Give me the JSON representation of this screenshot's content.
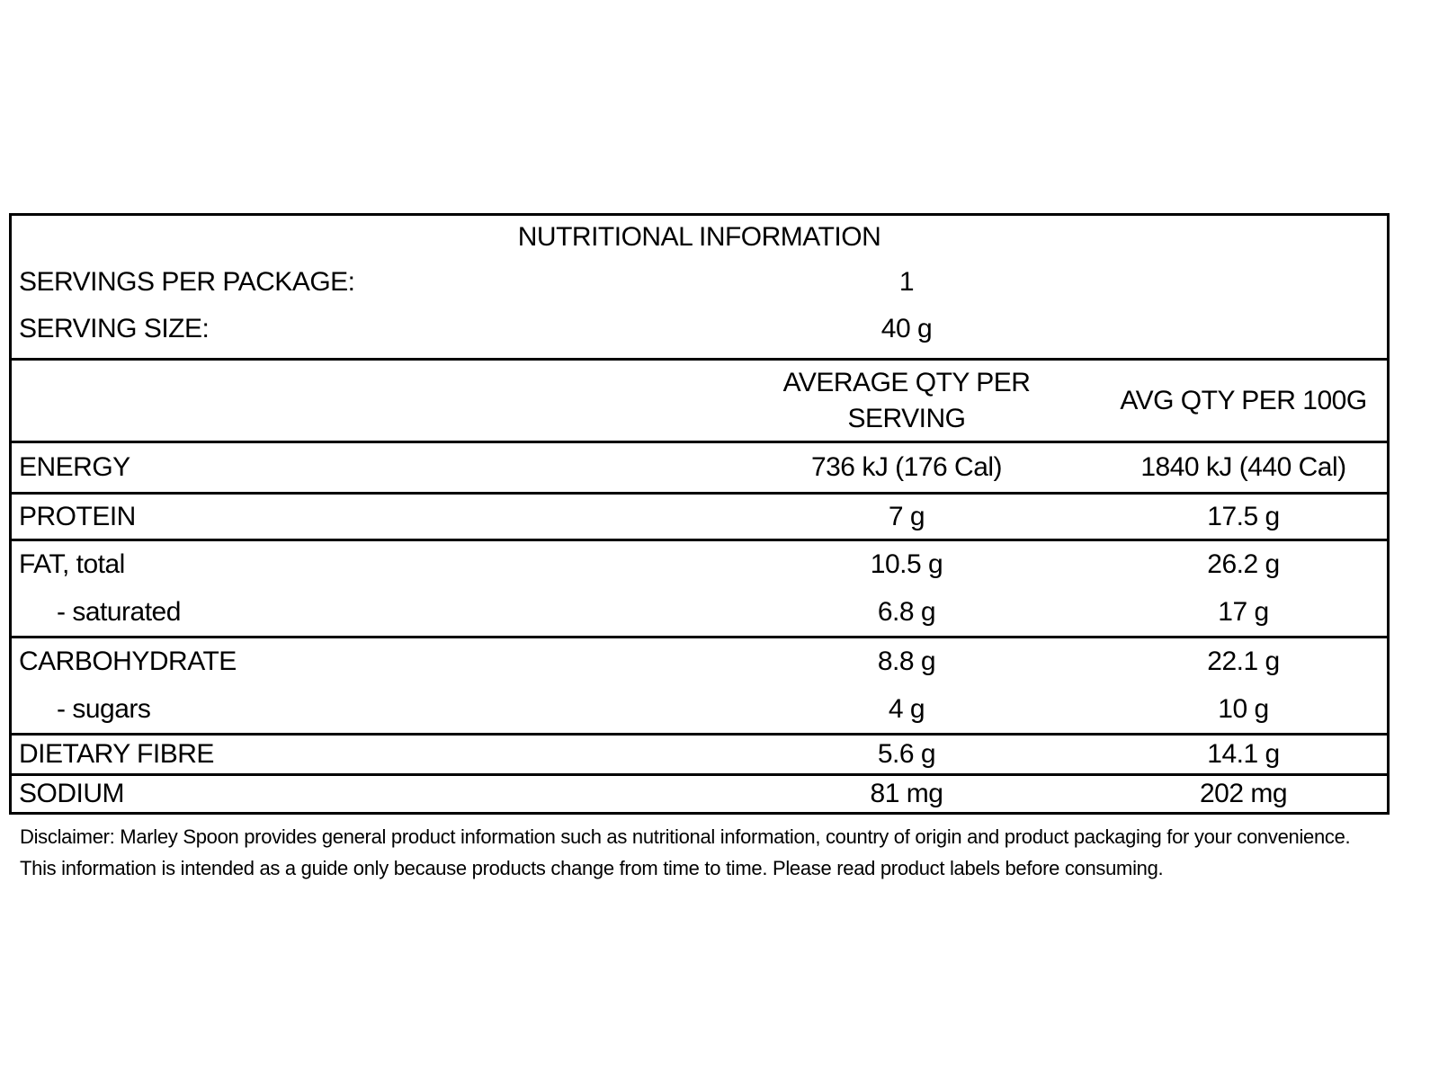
{
  "table": {
    "title": "NUTRITIONAL INFORMATION",
    "meta": [
      {
        "label": "SERVINGS PER PACKAGE:",
        "value": "1"
      },
      {
        "label": "SERVING SIZE:",
        "value": "40 g"
      }
    ],
    "columns": {
      "per_serving": "AVERAGE QTY PER SERVING",
      "per_100g": "AVG QTY PER 100G"
    },
    "rows": [
      {
        "label": "ENERGY",
        "per_serving": "736 kJ (176 Cal)",
        "per_100g": "1840 kJ (440 Cal)",
        "indent": false,
        "divider_after": true
      },
      {
        "label": "PROTEIN",
        "per_serving": "7 g",
        "per_100g": "17.5 g",
        "indent": false,
        "divider_after": true
      },
      {
        "label": "FAT, total",
        "per_serving": "10.5 g",
        "per_100g": "26.2 g",
        "indent": false,
        "divider_after": false
      },
      {
        "label": "- saturated",
        "per_serving": "6.8 g",
        "per_100g": "17 g",
        "indent": true,
        "divider_after": true
      },
      {
        "label": "CARBOHYDRATE",
        "per_serving": "8.8 g",
        "per_100g": "22.1 g",
        "indent": false,
        "divider_after": false
      },
      {
        "label": "- sugars",
        "per_serving": "4 g",
        "per_100g": "10 g",
        "indent": true,
        "divider_after": true
      },
      {
        "label": "DIETARY FIBRE",
        "per_serving": "5.6 g",
        "per_100g": "14.1 g",
        "indent": false,
        "divider_after": true
      },
      {
        "label": "SODIUM",
        "per_serving": "81 mg",
        "per_100g": "202 mg",
        "indent": false,
        "divider_after": false
      }
    ]
  },
  "disclaimer": {
    "line1": "Disclaimer: Marley Spoon provides general product information such as nutritional information, country of origin and product packaging for your convenience.",
    "line2": "This information is intended as a guide only because products change from time to time. Please read product labels before consuming."
  }
}
